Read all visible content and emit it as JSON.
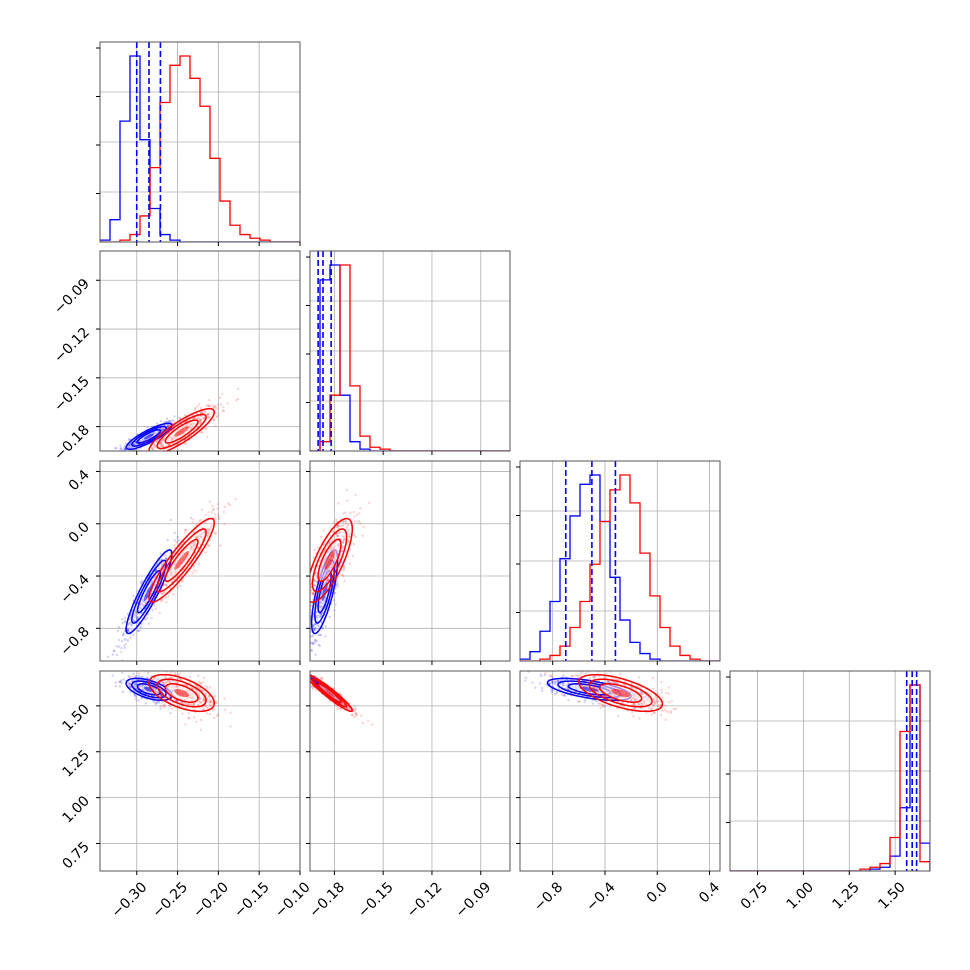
{
  "chart_data": {
    "type": "corner",
    "title": "",
    "grid": true,
    "legend": "none",
    "colors": {
      "series_a": "#0000ff",
      "series_b": "#ff0000",
      "quantile_lines": "#0000ff",
      "frame": "#555555",
      "grid": "#b0b0b0"
    },
    "series": [
      {
        "color": "#0000ff",
        "means": [
          -0.285,
          -0.186,
          -0.52,
          1.59
        ],
        "sds": [
          0.014,
          0.004,
          0.16,
          0.03
        ],
        "corr": [
          [
            1,
            0.85,
            0.9,
            -0.55
          ],
          [
            0.85,
            1,
            0.75,
            -0.95
          ],
          [
            0.9,
            0.75,
            1,
            -0.6
          ],
          [
            -0.55,
            -0.95,
            -0.6,
            1
          ]
        ]
      },
      {
        "color": "#ff0000",
        "means": [
          -0.245,
          -0.183,
          -0.28,
          1.57
        ],
        "sds": [
          0.02,
          0.007,
          0.16,
          0.05
        ],
        "corr": [
          [
            1,
            0.85,
            0.9,
            -0.55
          ],
          [
            0.85,
            1,
            0.75,
            -0.95
          ],
          [
            0.9,
            0.75,
            1,
            -0.6
          ],
          [
            -0.55,
            -0.95,
            -0.6,
            1
          ]
        ]
      }
    ],
    "parameters": [
      {
        "range": [
          -0.345,
          -0.1
        ],
        "ticks": [
          -0.3,
          -0.25,
          -0.2,
          -0.15,
          -0.1
        ],
        "tick_labels": [
          "−0.30",
          "−0.25",
          "−0.20",
          "−0.15",
          "−0.10"
        ],
        "quantiles": [
          -0.3,
          -0.285,
          -0.271
        ],
        "hist_blue": [
          1,
          12,
          65,
          100,
          55,
          18,
          4,
          1,
          0,
          0,
          0,
          0,
          0,
          0,
          0,
          0,
          0,
          0,
          0,
          0
        ],
        "hist_red": [
          0,
          0,
          1,
          4,
          14,
          40,
          75,
          95,
          100,
          88,
          73,
          45,
          22,
          9,
          4,
          2,
          1,
          0,
          0,
          0
        ]
      },
      {
        "range": [
          -0.195,
          -0.072
        ],
        "ticks": [
          -0.18,
          -0.15,
          -0.12,
          -0.09
        ],
        "tick_labels": [
          "−0.18",
          "−0.15",
          "−0.12",
          "−0.09"
        ],
        "quantiles": [
          -0.19,
          -0.187,
          -0.182
        ],
        "hist_blue": [
          0,
          92,
          100,
          30,
          5,
          1,
          0,
          0,
          0,
          0,
          0,
          0,
          0,
          0,
          0,
          0,
          0,
          0,
          0,
          0
        ],
        "hist_red": [
          0,
          5,
          30,
          100,
          35,
          8,
          2,
          1,
          0,
          0,
          0,
          0,
          0,
          0,
          0,
          0,
          0,
          0,
          0,
          0
        ]
      },
      {
        "range": [
          -1.05,
          0.48
        ],
        "ticks": [
          -0.8,
          -0.4,
          0.0,
          0.4
        ],
        "tick_labels": [
          "−0.8",
          "−0.4",
          "0.0",
          "0.4"
        ],
        "quantiles": [
          -0.7,
          -0.5,
          -0.32
        ],
        "hist_blue": [
          1,
          5,
          16,
          32,
          55,
          78,
          95,
          100,
          75,
          45,
          22,
          10,
          4,
          1,
          0,
          0,
          0,
          0,
          0,
          0
        ],
        "hist_red": [
          0,
          0,
          1,
          3,
          8,
          18,
          32,
          52,
          75,
          92,
          100,
          85,
          58,
          35,
          18,
          8,
          3,
          1,
          0,
          0
        ]
      },
      {
        "range": [
          0.6,
          1.69
        ],
        "ticks": [
          0.75,
          1.0,
          1.25,
          1.5
        ],
        "tick_labels": [
          "0.75",
          "1.00",
          "1.25",
          "1.50"
        ],
        "quantiles": [
          1.563,
          1.593,
          1.617
        ],
        "hist_blue": [
          0,
          0,
          0,
          0,
          0,
          0,
          0,
          0,
          0,
          0,
          0,
          0,
          0,
          0,
          1,
          2,
          8,
          34,
          100,
          15
        ],
        "hist_red": [
          0,
          0,
          0,
          0,
          0,
          0,
          0,
          0,
          0,
          0,
          0,
          0,
          0,
          1,
          2,
          4,
          18,
          75,
          100,
          5
        ]
      }
    ]
  }
}
